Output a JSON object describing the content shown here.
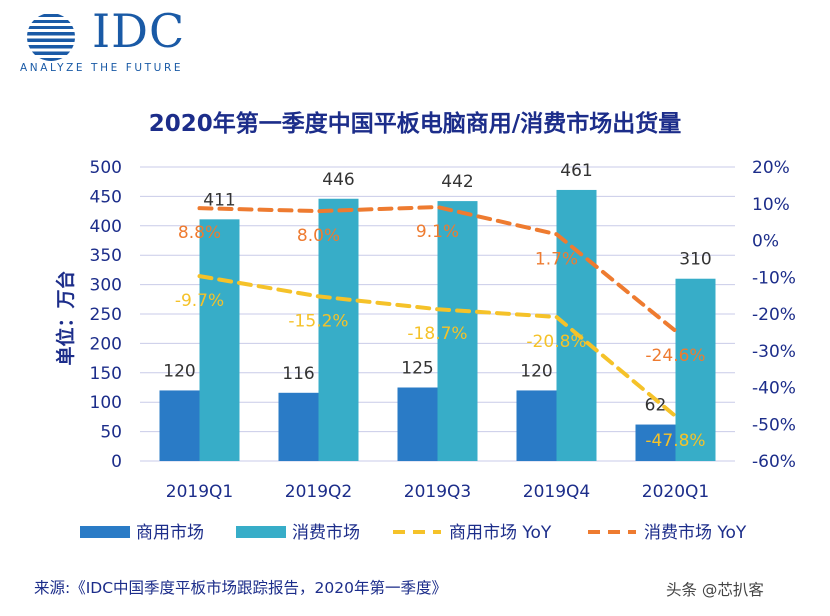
{
  "logo": {
    "name": "IDC",
    "tagline": "ANALYZE THE FUTURE"
  },
  "colors": {
    "commercial_bar": "#2a7bc6",
    "consumer_bar": "#37adc8",
    "commercial_yoy": "#f5c229",
    "consumer_yoy": "#ee7b30",
    "title": "#1c2d8a",
    "grid": "#c9cbe8"
  },
  "chart_data": {
    "type": "bar",
    "title": "2020年第一季度中国平板电脑商用/消费市场出货量",
    "ylabel": "单位：万台",
    "categories": [
      "2019Q1",
      "2019Q2",
      "2019Q3",
      "2019Q4",
      "2020Q1"
    ],
    "ylim": [
      0,
      500
    ],
    "yticks": [
      "0",
      "50",
      "100",
      "150",
      "200",
      "250",
      "300",
      "350",
      "400",
      "450",
      "500"
    ],
    "y2lim": [
      -60,
      20
    ],
    "y2ticks": [
      "-60%",
      "-50%",
      "-40%",
      "-30%",
      "-20%",
      "-10%",
      "0%",
      "10%",
      "20%"
    ],
    "grid": true,
    "legend_position": "bottom",
    "series": [
      {
        "name": "商用市场",
        "kind": "bar",
        "axis": "left",
        "values": [
          120,
          116,
          125,
          120,
          62
        ],
        "labels": [
          "120",
          "116",
          "125",
          "120",
          "62"
        ]
      },
      {
        "name": "消费市场",
        "kind": "bar",
        "axis": "left",
        "values": [
          411,
          446,
          442,
          461,
          310
        ],
        "labels": [
          "411",
          "446",
          "442",
          "461",
          "310"
        ]
      },
      {
        "name": "商用市场 YoY",
        "kind": "line",
        "style": "dashed",
        "axis": "right",
        "values": [
          -9.7,
          -15.2,
          -18.7,
          -20.8,
          -47.8
        ],
        "labels": [
          "-9.7%",
          "-15.2%",
          "-18.7%",
          "-20.8%",
          "-47.8%"
        ]
      },
      {
        "name": "消费市场 YoY",
        "kind": "line",
        "style": "dashed",
        "axis": "right",
        "values": [
          8.8,
          8.0,
          9.1,
          1.7,
          -24.6
        ],
        "labels": [
          "8.8%",
          "8.0%",
          "9.1%",
          "1.7%",
          "-24.6%"
        ]
      }
    ]
  },
  "source": "来源:《IDC中国季度平板市场跟踪报告，2020年第一季度》",
  "watermark": "头条 @芯扒客"
}
